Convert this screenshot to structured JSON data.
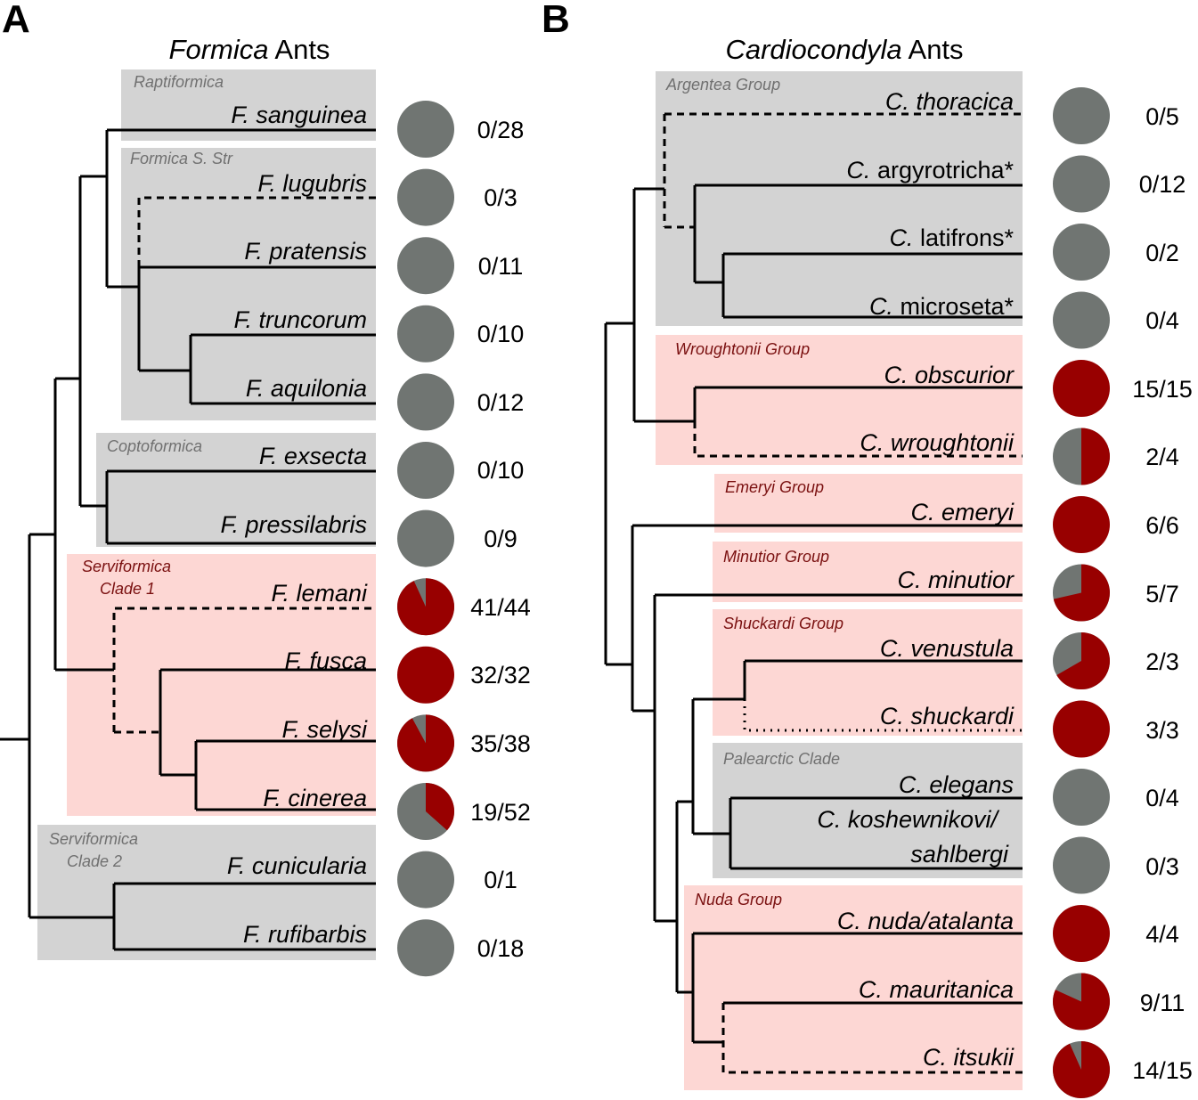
{
  "colors": {
    "red": "#980000",
    "gray": "#707572",
    "box_gray": "#d3d3d3",
    "box_red": "#fdd7d4"
  },
  "panelA": {
    "letter": "A",
    "title_italic": "Formica",
    "title_rest": " Ants",
    "groups": [
      {
        "lines": [
          "Raptiformica"
        ],
        "color": "gray"
      },
      {
        "lines": [
          "Formica S. Str"
        ],
        "color": "gray"
      },
      {
        "lines": [
          "Coptoformica"
        ],
        "color": "gray"
      },
      {
        "lines": [
          "Serviformica",
          "Clade 1"
        ],
        "color": "red"
      },
      {
        "lines": [
          "Serviformica",
          "Clade 2"
        ],
        "color": "gray"
      }
    ],
    "species": [
      {
        "name": "F. sanguinea",
        "count": "0/28",
        "k": 0,
        "n": 28
      },
      {
        "name": "F. lugubris",
        "count": "0/3",
        "k": 0,
        "n": 3
      },
      {
        "name": "F. pratensis",
        "count": "0/11",
        "k": 0,
        "n": 11
      },
      {
        "name": "F. truncorum",
        "count": "0/10",
        "k": 0,
        "n": 10
      },
      {
        "name": "F. aquilonia",
        "count": "0/12",
        "k": 0,
        "n": 12
      },
      {
        "name": "F. exsecta",
        "count": "0/10",
        "k": 0,
        "n": 10
      },
      {
        "name": "F. pressilabris",
        "count": "0/9",
        "k": 0,
        "n": 9
      },
      {
        "name": "F. lemani",
        "count": "41/44",
        "k": 41,
        "n": 44
      },
      {
        "name": "F. fusca",
        "count": "32/32",
        "k": 32,
        "n": 32
      },
      {
        "name": "F. selysi",
        "count": "35/38",
        "k": 35,
        "n": 38
      },
      {
        "name": "F. cinerea",
        "count": "19/52",
        "k": 19,
        "n": 52
      },
      {
        "name": "F. cunicularia",
        "count": "0/1",
        "k": 0,
        "n": 1
      },
      {
        "name": "F. rufibarbis",
        "count": "0/18",
        "k": 0,
        "n": 18
      }
    ]
  },
  "panelB": {
    "letter": "B",
    "title_italic": "Cardiocondyla",
    "title_rest": " Ants",
    "groups": [
      {
        "lines": [
          "Argentea Group"
        ],
        "color": "gray"
      },
      {
        "lines": [
          "Wroughtonii Group"
        ],
        "color": "red"
      },
      {
        "lines": [
          "Emeryi Group"
        ],
        "color": "red"
      },
      {
        "lines": [
          "Minutior Group"
        ],
        "color": "red"
      },
      {
        "lines": [
          "Shuckardi Group"
        ],
        "color": "red"
      },
      {
        "lines": [
          "Palearctic Clade"
        ],
        "color": "gray"
      },
      {
        "lines": [
          "Nuda Group"
        ],
        "color": "red"
      }
    ],
    "species": [
      {
        "genus": "C.",
        "epithet": "thoracica",
        "epithet_italic": true,
        "count": "0/5",
        "k": 0,
        "n": 5
      },
      {
        "genus": "C.",
        "epithet": "argyrotricha*",
        "epithet_italic": false,
        "count": "0/12",
        "k": 0,
        "n": 12
      },
      {
        "genus": "C.",
        "epithet": "latifrons*",
        "epithet_italic": false,
        "count": "0/2",
        "k": 0,
        "n": 2
      },
      {
        "genus": "C.",
        "epithet": "microseta*",
        "epithet_italic": false,
        "count": "0/4",
        "k": 0,
        "n": 4
      },
      {
        "genus": "C.",
        "epithet": "obscurior",
        "epithet_italic": true,
        "count": "15/15",
        "k": 15,
        "n": 15
      },
      {
        "genus": "C.",
        "epithet": "wroughtonii",
        "epithet_italic": true,
        "count": "2/4",
        "k": 2,
        "n": 4
      },
      {
        "genus": "C.",
        "epithet": "emeryi",
        "epithet_italic": true,
        "count": "6/6",
        "k": 6,
        "n": 6
      },
      {
        "genus": "C.",
        "epithet": "minutior",
        "epithet_italic": true,
        "count": "5/7",
        "k": 5,
        "n": 7
      },
      {
        "genus": "C.",
        "epithet": "venustula",
        "epithet_italic": true,
        "count": "2/3",
        "k": 2,
        "n": 3
      },
      {
        "genus": "C.",
        "epithet": "shuckardi",
        "epithet_italic": true,
        "count": "3/3",
        "k": 3,
        "n": 3
      },
      {
        "genus": "C.",
        "epithet": "elegans",
        "epithet_italic": true,
        "count": "0/4",
        "k": 0,
        "n": 4
      },
      {
        "genus": "C.",
        "epithet": "koshewnikovi/",
        "epithet2": "sahlbergi",
        "epithet_italic": true,
        "count": "0/3",
        "k": 0,
        "n": 3
      },
      {
        "genus": "C.",
        "epithet": "nuda/atalanta",
        "epithet_italic": true,
        "count": "4/4",
        "k": 4,
        "n": 4
      },
      {
        "genus": "C.",
        "epithet": "mauritanica",
        "epithet_italic": true,
        "count": "9/11",
        "k": 9,
        "n": 11
      },
      {
        "genus": "C.",
        "epithet": "itsukii",
        "epithet_italic": true,
        "count": "14/15",
        "k": 14,
        "n": 15
      }
    ]
  }
}
